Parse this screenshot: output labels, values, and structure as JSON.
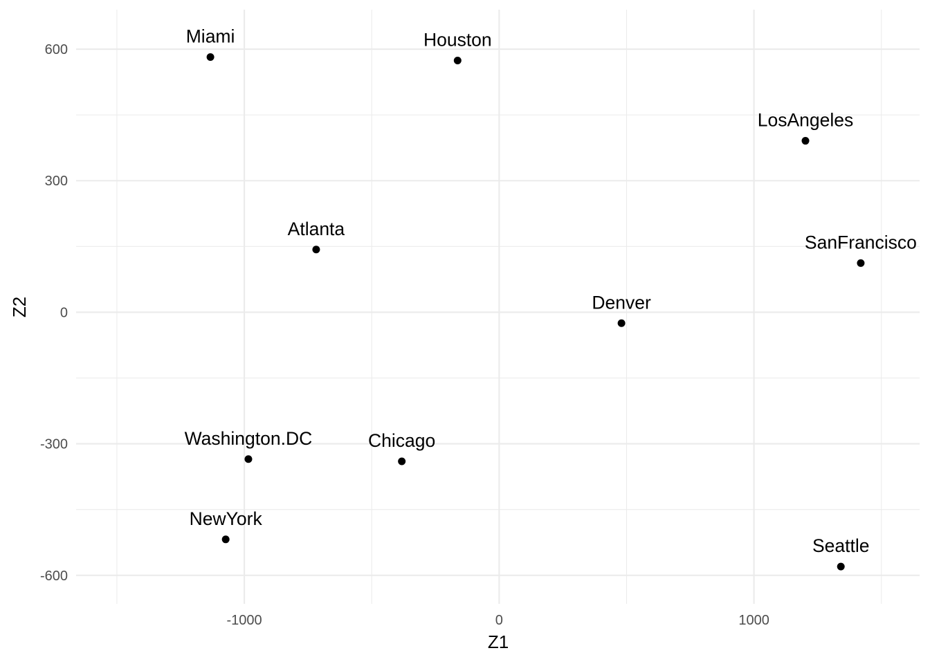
{
  "chart_data": {
    "type": "scatter",
    "xlabel": "Z1",
    "ylabel": "Z2",
    "xlim": [
      -1660,
      1650
    ],
    "ylim": [
      -665,
      690
    ],
    "x_major_ticks": [
      -1000,
      0,
      1000
    ],
    "x_minor_ticks": [
      -1500,
      -500,
      500,
      1500
    ],
    "y_major_ticks": [
      -600,
      -300,
      0,
      300,
      600
    ],
    "y_minor_ticks": [
      -450,
      -150,
      150,
      450
    ],
    "x_tick_labels": [
      "-1000",
      "0",
      "1000"
    ],
    "y_tick_labels": [
      "-600",
      "-300",
      "0",
      "300",
      "600"
    ],
    "grid": true,
    "legend": "none",
    "points": [
      {
        "label": "Miami",
        "x": -1133,
        "y": 582
      },
      {
        "label": "Houston",
        "x": -163,
        "y": 574
      },
      {
        "label": "LosAngeles",
        "x": 1202,
        "y": 391
      },
      {
        "label": "Atlanta",
        "x": -718,
        "y": 143
      },
      {
        "label": "SanFrancisco",
        "x": 1419,
        "y": 112
      },
      {
        "label": "Denver",
        "x": 480,
        "y": -25
      },
      {
        "label": "Washington.DC",
        "x": -984,
        "y": -335
      },
      {
        "label": "Chicago",
        "x": -382,
        "y": -340
      },
      {
        "label": "NewYork",
        "x": -1073,
        "y": -518
      },
      {
        "label": "Seattle",
        "x": 1341,
        "y": -580
      }
    ],
    "colors": {
      "points": "#000000",
      "grid": "#ebebeb",
      "tick_labels": "#4d4d4d"
    }
  }
}
